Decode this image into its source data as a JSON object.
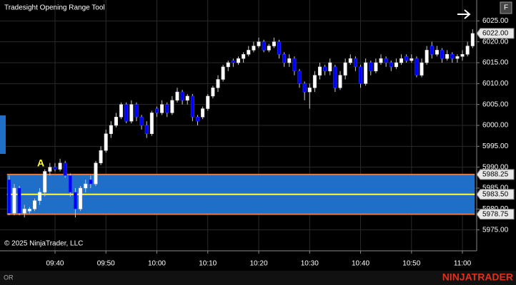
{
  "ui": {
    "title": "Tradesight Opening Range Tool",
    "copyright": "© 2025 NinjaTrader, LLC",
    "button": "F",
    "tab": "OR",
    "brand": "NINJATRADER"
  },
  "chart_data": {
    "type": "candlestick",
    "annotation": "A",
    "up_color": "#ffffff",
    "down_color": "#0000ff",
    "x": [
      571,
      572,
      573,
      574,
      575,
      576,
      577,
      578,
      579,
      580,
      581,
      582,
      583,
      584,
      585,
      586,
      587,
      588,
      589,
      590,
      591,
      592,
      593,
      594,
      595,
      596,
      597,
      598,
      599,
      600,
      601,
      602,
      603,
      604,
      605,
      606,
      607,
      608,
      609,
      610,
      611,
      612,
      613,
      614,
      615,
      616,
      617,
      618,
      619,
      620,
      621,
      622,
      623,
      624,
      625,
      626,
      627,
      628,
      629,
      630,
      631,
      632,
      633,
      634,
      635,
      636,
      637,
      638,
      639,
      640,
      641,
      642,
      643,
      644,
      645,
      646,
      647,
      648,
      649,
      650,
      651,
      652,
      653,
      654,
      655,
      656,
      657,
      658,
      659,
      660,
      661,
      662
    ],
    "open": [
      5987,
      5979,
      5985,
      5979,
      5979.5,
      5980,
      5982,
      5984,
      5989,
      5990,
      5989.5,
      5991,
      5988,
      5984,
      5980,
      5985,
      5987,
      5986,
      5991,
      5994,
      5998,
      6000,
      6002,
      6005,
      6001,
      6005,
      6002,
      6000,
      5998,
      6004,
      6003,
      6005,
      6003,
      6006,
      6008,
      6006,
      6007,
      6002,
      6002,
      6004,
      6007,
      6009,
      6011,
      6014,
      6015.5,
      6015,
      6016,
      6017,
      6018,
      6019,
      6020,
      6018,
      6019,
      6020,
      6017,
      6015,
      6016,
      6013,
      6010,
      6008,
      6009,
      6012,
      6014,
      6013,
      6014,
      6009,
      6012,
      6015,
      6016,
      6014,
      6010,
      6015,
      6013,
      6015,
      6016,
      6015,
      6014,
      6015,
      6016.5,
      6015.5,
      6016,
      6012,
      6015,
      6019,
      6017,
      6018,
      6016,
      6017,
      6016,
      6016.5,
      6017,
      6019
    ],
    "high": [
      5988,
      5986,
      5985.5,
      5981,
      5980.5,
      5982.5,
      5985,
      5989.5,
      5991,
      5991,
      5992,
      5991.5,
      5988.5,
      5985,
      5985.5,
      5987,
      5988,
      5991.5,
      5995,
      5999,
      6001,
      6003,
      6005.5,
      6005.5,
      6006,
      6005.5,
      6002.5,
      6001,
      6003.5,
      6004.5,
      6006,
      6005.5,
      6007,
      6009,
      6008.5,
      6007.5,
      6007.5,
      6002.5,
      6004.5,
      6007.5,
      6009.5,
      6012,
      6014.5,
      6015.5,
      6016,
      6016.5,
      6017.5,
      6019,
      6020,
      6021,
      6020.5,
      6019.5,
      6021,
      6020.5,
      6017.5,
      6017,
      6016.5,
      6013.5,
      6010.5,
      6010,
      6013,
      6015,
      6014.5,
      6016,
      6014.5,
      6013,
      6016,
      6017,
      6016.5,
      6014.5,
      6016,
      6015.5,
      6016,
      6017,
      6016.5,
      6015.5,
      6016,
      6017,
      6017,
      6017,
      6016.5,
      6016,
      6019,
      6020,
      6019,
      6018.5,
      6018,
      6017.5,
      6017,
      6018,
      6020,
      6023
    ],
    "low": [
      5978.5,
      5978.5,
      5978.5,
      5978,
      5979,
      5979.5,
      5981,
      5983,
      5988,
      5989,
      5989,
      5987.5,
      5983,
      5978,
      5979.5,
      5984,
      5985,
      5985.5,
      5990.5,
      5993.5,
      5997,
      5999.5,
      6001.5,
      6000.5,
      6000.5,
      6001,
      5999,
      5997,
      5997.5,
      6002,
      6002.5,
      6002,
      6002.5,
      6005.5,
      6005,
      6005,
      6001,
      6000,
      6001.5,
      6003.5,
      6006.5,
      6008,
      6010.5,
      6013,
      6014,
      6014.5,
      6015,
      6016.5,
      6017.5,
      6018.5,
      6017.5,
      6017.5,
      6018.5,
      6016,
      6014,
      6014,
      6012,
      6009,
      6006,
      6004,
      6008,
      6011,
      6012,
      6012,
      6008,
      6008.5,
      6011,
      6014.5,
      6013,
      6009,
      6009.5,
      6012,
      6012.5,
      6014.5,
      6014,
      6013,
      6013.5,
      6014.5,
      6015,
      6015,
      6011.5,
      6011.5,
      6014.5,
      6016,
      6016.5,
      6015,
      6015.5,
      6015,
      6015,
      6015.5,
      6016.5,
      6018.5
    ],
    "close": [
      5979,
      5985,
      5979,
      5980,
      5980,
      5982,
      5984,
      5989,
      5990,
      5989.5,
      5991,
      5988,
      5984,
      5980,
      5985,
      5986,
      5986,
      5991,
      5994,
      5998,
      6000,
      6002,
      6005,
      6001,
      6005,
      6002,
      6000,
      5998,
      6003,
      6003,
      6005,
      6003,
      6006,
      6008,
      6006,
      6007,
      6002,
      6001,
      6004,
      6007,
      6009,
      6011,
      6014,
      6015,
      6015,
      6016,
      6017,
      6018,
      6019,
      6020,
      6018,
      6019,
      6020,
      6017,
      6015,
      6016,
      6013,
      6010,
      6008,
      6009,
      6012,
      6014,
      6013,
      6015,
      6009,
      6012,
      6015,
      6016,
      6014,
      6010,
      6015,
      6013,
      6015,
      6016,
      6015,
      6014,
      6015,
      6016,
      6015.5,
      6016,
      6012,
      6015,
      6018,
      6017,
      6018,
      6016,
      6017,
      6016,
      6016.5,
      6017,
      6019,
      6022
    ],
    "levels": [
      {
        "value": 5988.25,
        "label": "5988.25",
        "color": "#e8793a"
      },
      {
        "value": 5983.5,
        "label": "5983.50",
        "color": "#ffff33"
      },
      {
        "value": 5978.75,
        "label": "5978.75",
        "color": "#e8793a"
      }
    ],
    "range_fill": "#1f6ec8",
    "last_price": {
      "value": 6022,
      "label": "6022.00"
    },
    "xlim": [
      569.2,
      662.8
    ],
    "ylim": [
      5970,
      6030
    ],
    "xticks": [
      {
        "value": 580,
        "label": "09:40"
      },
      {
        "value": 590,
        "label": "09:50"
      },
      {
        "value": 600,
        "label": "10:00"
      },
      {
        "value": 610,
        "label": "10:10"
      },
      {
        "value": 620,
        "label": "10:20"
      },
      {
        "value": 630,
        "label": "10:30"
      },
      {
        "value": 640,
        "label": "10:40"
      },
      {
        "value": 650,
        "label": "10:50"
      },
      {
        "value": 660,
        "label": "11:00"
      }
    ],
    "yticks": [
      {
        "value": 5975,
        "label": "5975.00"
      },
      {
        "value": 5980,
        "label": "5980.00"
      },
      {
        "value": 5985,
        "label": "5985.00"
      },
      {
        "value": 5990,
        "label": "5990.00"
      },
      {
        "value": 5995,
        "label": "5995.00"
      },
      {
        "value": 6000,
        "label": "6000.00"
      },
      {
        "value": 6005,
        "label": "6005.00"
      },
      {
        "value": 6010,
        "label": "6010.00"
      },
      {
        "value": 6015,
        "label": "6015.00"
      },
      {
        "value": 6020,
        "label": "6020.00"
      },
      {
        "value": 6025,
        "label": "6025.00"
      }
    ],
    "grid": true
  }
}
